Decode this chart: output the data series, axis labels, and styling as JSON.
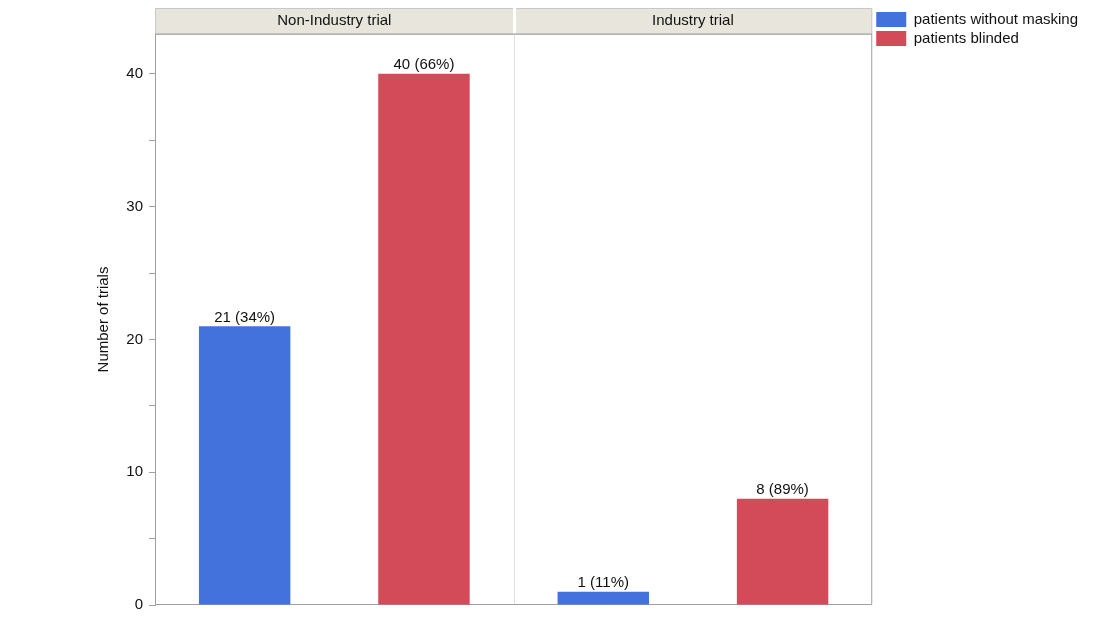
{
  "chart_data": {
    "type": "bar",
    "ylabel": "Number of trials",
    "categories": [
      "Non-Industry trial",
      "Industry trial"
    ],
    "series": [
      {
        "name": "patients without masking",
        "color": "#4472dc",
        "values": [
          21,
          1
        ],
        "value_labels": [
          "21 (34%)",
          "1 (11%)"
        ]
      },
      {
        "name": "patients blinded",
        "color": "#d34a58",
        "values": [
          40,
          8
        ],
        "value_labels": [
          "40 (66%)",
          "8 (89%)"
        ]
      }
    ],
    "ylim": [
      0,
      43
    ],
    "yticks": [
      0,
      {
        "value": 5,
        "label": null
      },
      10,
      {
        "value": 15,
        "label": null
      },
      20,
      {
        "value": 25,
        "label": null
      },
      30,
      {
        "value": 35,
        "label": null
      },
      40
    ],
    "grid": false,
    "legend": "top right"
  }
}
